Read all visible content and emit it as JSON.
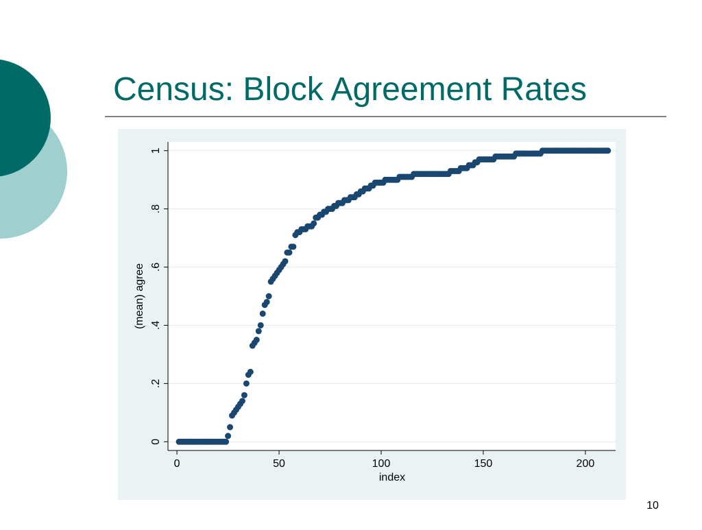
{
  "page_number": "10",
  "chart_data": {
    "type": "scatter",
    "title": "Census: Block Agreement Rates",
    "x_label": "index",
    "y_label": "(mean) agree",
    "x": [
      1,
      2,
      3,
      4,
      5,
      6,
      7,
      8,
      9,
      10,
      11,
      12,
      13,
      14,
      15,
      16,
      17,
      18,
      19,
      20,
      21,
      22,
      23,
      24,
      25,
      26,
      27,
      28,
      29,
      30,
      31,
      32,
      33,
      34,
      35,
      36,
      37,
      38,
      39,
      40,
      41,
      42,
      43,
      44,
      45,
      46,
      47,
      48,
      49,
      50,
      51,
      52,
      53,
      54,
      55,
      56,
      57,
      58,
      59,
      60,
      61,
      62,
      63,
      64,
      65,
      66,
      67,
      68,
      69,
      70,
      71,
      72,
      73,
      74,
      75,
      76,
      77,
      78,
      79,
      80,
      81,
      82,
      83,
      84,
      85,
      86,
      87,
      88,
      89,
      90,
      91,
      92,
      93,
      94,
      95,
      96,
      97,
      98,
      99,
      100,
      101,
      102,
      103,
      104,
      105,
      106,
      107,
      108,
      109,
      110,
      111,
      112,
      113,
      114,
      115,
      116,
      117,
      118,
      119,
      120,
      121,
      122,
      123,
      124,
      125,
      126,
      127,
      128,
      129,
      130,
      131,
      132,
      133,
      134,
      135,
      136,
      137,
      138,
      139,
      140,
      141,
      142,
      143,
      144,
      145,
      146,
      147,
      148,
      149,
      150,
      151,
      152,
      153,
      154,
      155,
      156,
      157,
      158,
      159,
      160,
      161,
      162,
      163,
      164,
      165,
      166,
      167,
      168,
      169,
      170,
      171,
      172,
      173,
      174,
      175,
      176,
      177,
      178,
      179,
      180,
      181,
      182,
      183,
      184,
      185,
      186,
      187,
      188,
      189,
      190,
      191,
      192,
      193,
      194,
      195,
      196,
      197,
      198,
      199,
      200,
      201,
      202,
      203,
      204,
      205,
      206,
      207,
      208,
      209,
      210,
      211
    ],
    "values": [
      0,
      0,
      0,
      0,
      0,
      0,
      0,
      0,
      0,
      0,
      0,
      0,
      0,
      0,
      0,
      0,
      0,
      0,
      0,
      0,
      0,
      0,
      0,
      0,
      0.02,
      0.05,
      0.09,
      0.1,
      0.11,
      0.12,
      0.13,
      0.14,
      0.16,
      0.2,
      0.23,
      0.24,
      0.33,
      0.34,
      0.35,
      0.38,
      0.4,
      0.44,
      0.47,
      0.48,
      0.5,
      0.55,
      0.56,
      0.57,
      0.58,
      0.59,
      0.6,
      0.61,
      0.62,
      0.65,
      0.65,
      0.67,
      0.67,
      0.71,
      0.72,
      0.72,
      0.73,
      0.73,
      0.73,
      0.74,
      0.74,
      0.74,
      0.75,
      0.77,
      0.77,
      0.78,
      0.78,
      0.79,
      0.79,
      0.8,
      0.8,
      0.8,
      0.81,
      0.81,
      0.82,
      0.82,
      0.82,
      0.83,
      0.83,
      0.83,
      0.84,
      0.84,
      0.84,
      0.85,
      0.85,
      0.86,
      0.86,
      0.87,
      0.87,
      0.87,
      0.88,
      0.88,
      0.89,
      0.89,
      0.89,
      0.89,
      0.89,
      0.9,
      0.9,
      0.9,
      0.9,
      0.9,
      0.9,
      0.9,
      0.91,
      0.91,
      0.91,
      0.91,
      0.91,
      0.91,
      0.91,
      0.92,
      0.92,
      0.92,
      0.92,
      0.92,
      0.92,
      0.92,
      0.92,
      0.92,
      0.92,
      0.92,
      0.92,
      0.92,
      0.92,
      0.92,
      0.92,
      0.92,
      0.92,
      0.93,
      0.93,
      0.93,
      0.93,
      0.93,
      0.94,
      0.94,
      0.94,
      0.94,
      0.95,
      0.95,
      0.95,
      0.96,
      0.96,
      0.97,
      0.97,
      0.97,
      0.97,
      0.97,
      0.97,
      0.97,
      0.97,
      0.98,
      0.98,
      0.98,
      0.98,
      0.98,
      0.98,
      0.98,
      0.98,
      0.98,
      0.98,
      0.99,
      0.99,
      0.99,
      0.99,
      0.99,
      0.99,
      0.99,
      0.99,
      0.99,
      0.99,
      0.99,
      0.99,
      0.99,
      1,
      1,
      1,
      1,
      1,
      1,
      1,
      1,
      1,
      1,
      1,
      1,
      1,
      1,
      1,
      1,
      1,
      1,
      1,
      1,
      1,
      1,
      1,
      1,
      1,
      1,
      1,
      1,
      1,
      1,
      1,
      1,
      1
    ],
    "color": "#1a476f",
    "xlim": [
      -4.4,
      214.8
    ],
    "xticks": [
      0,
      50,
      100,
      150,
      200
    ],
    "ylim": [
      -0.03,
      1.03
    ],
    "yticks": [
      0,
      {
        "value": 0.2,
        "label": ".2"
      },
      {
        "value": 0.4,
        "label": ".4"
      },
      {
        "value": 0.6,
        "label": ".6"
      },
      {
        "value": 0.8,
        "label": ".8"
      },
      1
    ],
    "grid": true
  }
}
